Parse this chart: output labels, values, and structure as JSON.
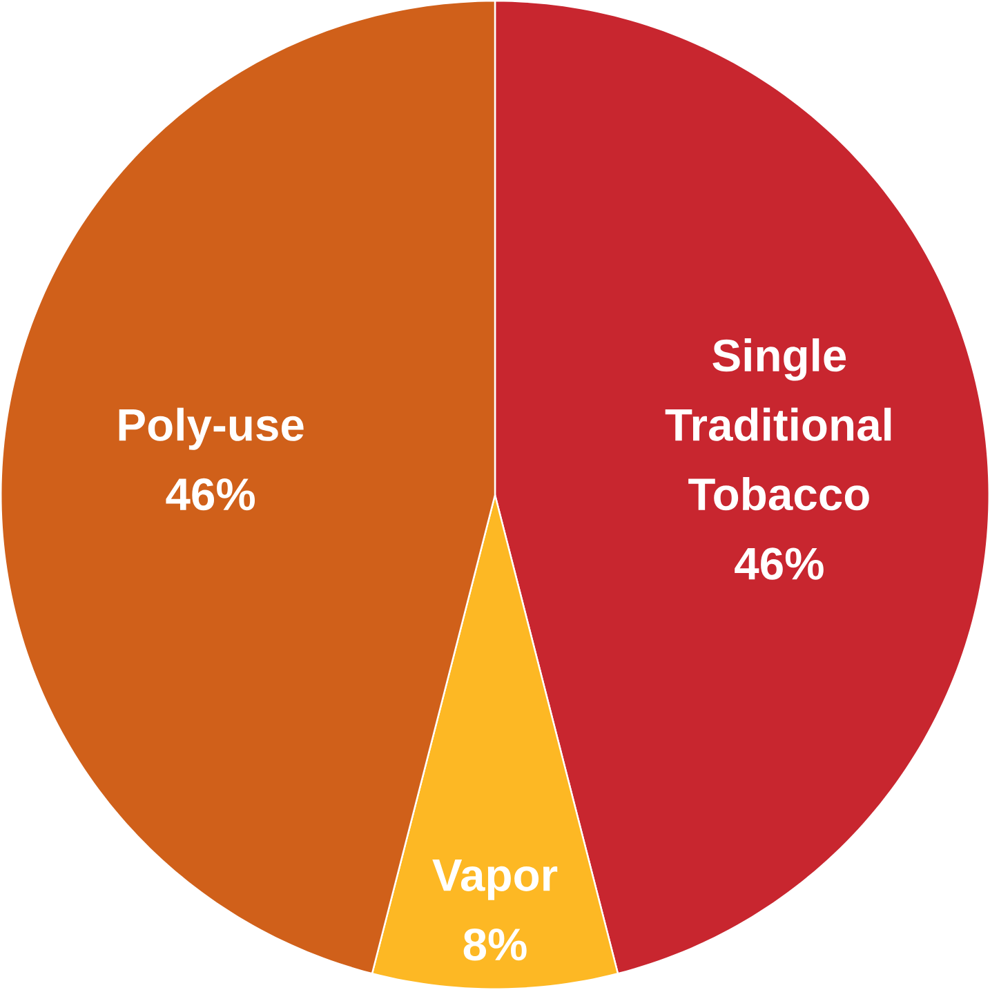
{
  "chart_data": {
    "type": "pie",
    "categories": [
      "Single Traditional Tobacco",
      "Vapor",
      "Poly-use"
    ],
    "values": [
      46,
      8,
      46
    ],
    "colors": [
      "#c8262f",
      "#fdb824",
      "#d0601a"
    ],
    "value_labels": [
      "46%",
      "8%",
      "46%"
    ]
  }
}
